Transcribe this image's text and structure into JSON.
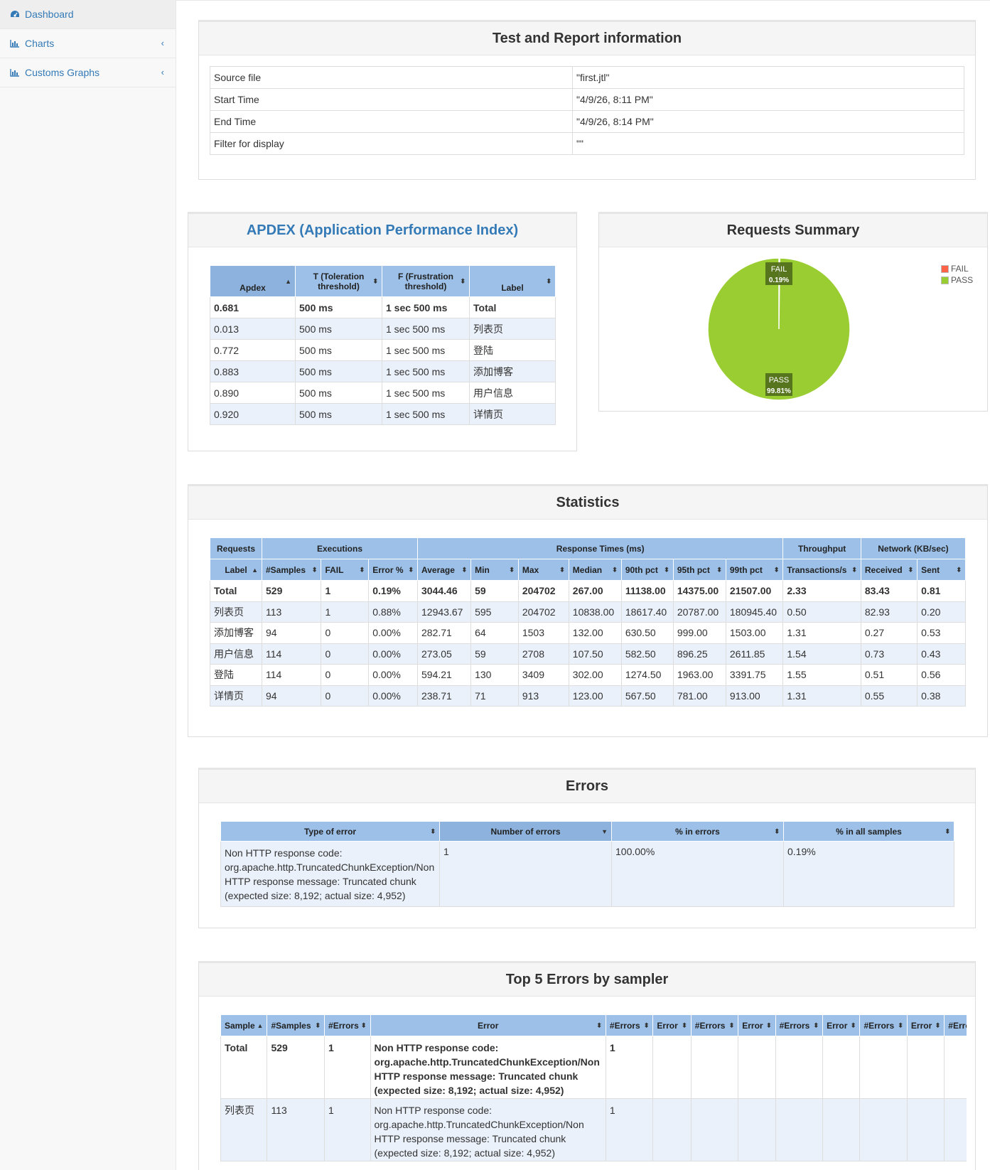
{
  "sidebar": {
    "items": [
      {
        "label": "Dashboard",
        "icon": "dashboard-icon"
      },
      {
        "label": "Charts",
        "icon": "bar-chart-icon"
      },
      {
        "label": "Customs Graphs",
        "icon": "bar-chart-icon"
      }
    ]
  },
  "test_info": {
    "title": "Test and Report information",
    "rows": [
      {
        "key": "Source file",
        "value": "\"first.jtl\""
      },
      {
        "key": "Start Time",
        "value": "\"4/9/26, 8:11 PM\""
      },
      {
        "key": "End Time",
        "value": "\"4/9/26, 8:14 PM\""
      },
      {
        "key": "Filter for display",
        "value": "\"\""
      }
    ]
  },
  "apdex": {
    "title": "APDEX (Application Performance Index)",
    "headers": [
      "Apdex",
      "T (Toleration threshold)",
      "F (Frustration threshold)",
      "Label"
    ],
    "rows": [
      [
        "0.681",
        "500 ms",
        "1 sec 500 ms",
        "Total"
      ],
      [
        "0.013",
        "500 ms",
        "1 sec 500 ms",
        "列表页"
      ],
      [
        "0.772",
        "500 ms",
        "1 sec 500 ms",
        "登陆"
      ],
      [
        "0.883",
        "500 ms",
        "1 sec 500 ms",
        "添加博客"
      ],
      [
        "0.890",
        "500 ms",
        "1 sec 500 ms",
        "用户信息"
      ],
      [
        "0.920",
        "500 ms",
        "1 sec 500 ms",
        "详情页"
      ]
    ]
  },
  "requests_summary": {
    "title": "Requests Summary",
    "legend": [
      {
        "name": "FAIL",
        "color": "#ff6347"
      },
      {
        "name": "PASS",
        "color": "#9acd32"
      }
    ]
  },
  "chart_data": {
    "type": "pie",
    "title": "Requests Summary",
    "labels": [
      "FAIL",
      "PASS"
    ],
    "values": [
      0.19,
      99.81
    ],
    "value_labels": [
      "0.19%",
      "99.81%"
    ],
    "colors": [
      "#ff6347",
      "#9acd32"
    ],
    "legend_position": "top-right"
  },
  "statistics": {
    "title": "Statistics",
    "groups": [
      "Requests",
      "Executions",
      "Response Times (ms)",
      "Throughput",
      "Network (KB/sec)"
    ],
    "headers": [
      "Label",
      "#Samples",
      "FAIL",
      "Error %",
      "Average",
      "Min",
      "Max",
      "Median",
      "90th pct",
      "95th pct",
      "99th pct",
      "Transactions/s",
      "Received",
      "Sent"
    ],
    "rows": [
      [
        "Total",
        "529",
        "1",
        "0.19%",
        "3044.46",
        "59",
        "204702",
        "267.00",
        "11138.00",
        "14375.00",
        "21507.00",
        "2.33",
        "83.43",
        "0.81"
      ],
      [
        "列表页",
        "113",
        "1",
        "0.88%",
        "12943.67",
        "595",
        "204702",
        "10838.00",
        "18617.40",
        "20787.00",
        "180945.40",
        "0.50",
        "82.93",
        "0.20"
      ],
      [
        "添加博客",
        "94",
        "0",
        "0.00%",
        "282.71",
        "64",
        "1503",
        "132.00",
        "630.50",
        "999.00",
        "1503.00",
        "1.31",
        "0.27",
        "0.53"
      ],
      [
        "用户信息",
        "114",
        "0",
        "0.00%",
        "273.05",
        "59",
        "2708",
        "107.50",
        "582.50",
        "896.25",
        "2611.85",
        "1.54",
        "0.73",
        "0.43"
      ],
      [
        "登陆",
        "114",
        "0",
        "0.00%",
        "594.21",
        "130",
        "3409",
        "302.00",
        "1274.50",
        "1963.00",
        "3391.75",
        "1.55",
        "0.51",
        "0.56"
      ],
      [
        "详情页",
        "94",
        "0",
        "0.00%",
        "238.71",
        "71",
        "913",
        "123.00",
        "567.50",
        "781.00",
        "913.00",
        "1.31",
        "0.55",
        "0.38"
      ]
    ]
  },
  "errors": {
    "title": "Errors",
    "headers": [
      "Type of error",
      "Number of errors",
      "% in errors",
      "% in all samples"
    ],
    "rows": [
      [
        "Non HTTP response code: org.apache.http.TruncatedChunkException/Non HTTP response message: Truncated chunk (expected size: 8,192; actual size: 4,952)",
        "1",
        "100.00%",
        "0.19%"
      ]
    ]
  },
  "top5": {
    "title": "Top 5 Errors by sampler",
    "headers": [
      "Sample",
      "#Samples",
      "#Errors",
      "Error",
      "#Errors",
      "Error",
      "#Errors",
      "Error",
      "#Errors",
      "Error",
      "#Errors",
      "Error",
      "#Erro"
    ],
    "rows": [
      [
        "Total",
        "529",
        "1",
        "Non HTTP response code: org.apache.http.TruncatedChunkException/Non HTTP response message: Truncated chunk (expected size: 8,192; actual size: 4,952)",
        "1",
        "",
        "",
        "",
        "",
        "",
        "",
        "",
        ""
      ],
      [
        "列表页",
        "113",
        "1",
        "Non HTTP response code: org.apache.http.TruncatedChunkException/Non HTTP response message: Truncated chunk (expected size: 8,192; actual size: 4,952)",
        "1",
        "",
        "",
        "",
        "",
        "",
        "",
        "",
        ""
      ]
    ]
  }
}
